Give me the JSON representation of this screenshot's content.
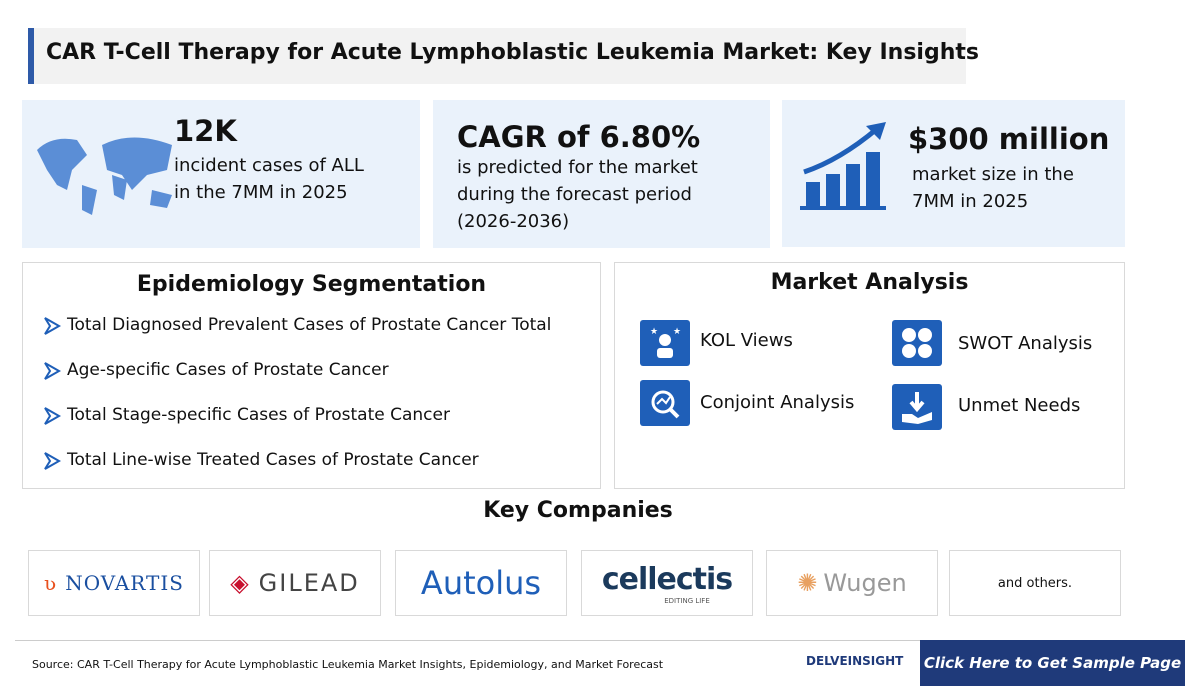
{
  "header": {
    "title": "CAR T-Cell Therapy for Acute Lymphoblastic Leukemia Market: Key Insights"
  },
  "stats": [
    {
      "value": "12K",
      "lines": [
        "incident cases of ALL",
        "in the 7MM in 2025"
      ]
    },
    {
      "value": "CAGR of 6.80%",
      "lines": [
        "is predicted for the market",
        "during the forecast period",
        "(2026-2036)"
      ]
    },
    {
      "value": "$300 million",
      "lines": [
        "market size in the",
        "7MM in 2025"
      ]
    }
  ],
  "epidemiology": {
    "title": "Epidemiology Segmentation",
    "items": [
      "Total Diagnosed Prevalent Cases of Prostate Cancer Total",
      "Age-specific Cases of Prostate Cancer",
      "Total Stage-specific Cases of Prostate Cancer",
      "Total Line-wise Treated Cases of Prostate Cancer"
    ]
  },
  "market_analysis": {
    "title": "Market Analysis",
    "items": [
      "KOL Views",
      "SWOT Analysis",
      "Conjoint Analysis",
      "Unmet Needs"
    ]
  },
  "companies": {
    "title": "Key Companies",
    "logos": [
      "NOVARTIS",
      "GILEAD",
      "Autolus",
      "cellectis",
      "EDITING LIFE",
      "Wugen",
      "and others."
    ]
  },
  "footer": {
    "source": "Source: CAR T-Cell Therapy for Acute Lymphoblastic Leukemia Market Insights, Epidemiology, and Market Forecast",
    "brand": "DELVEINSIGHT",
    "cta": "Click Here to Get Sample Page"
  }
}
